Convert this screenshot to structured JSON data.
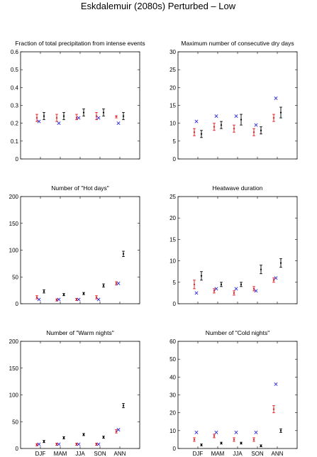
{
  "figure": {
    "title": "Eskdalemuir (2080s) Perturbed – Low",
    "categories": [
      "DJF",
      "MAM",
      "JJA",
      "SON",
      "ANN"
    ],
    "colors": {
      "red": "#e8141a",
      "blue": "#2a2ad8",
      "black": "#000000"
    }
  },
  "chart_data": [
    {
      "type": "scatter",
      "title": "Fraction of total precipitation from intense events",
      "ylim": [
        0,
        0.6
      ],
      "yticks": [
        "0",
        "0.1",
        "0.2",
        "0.3",
        "0.4",
        "0.5",
        "0.6"
      ],
      "ytick_values": [
        0,
        0.1,
        0.2,
        0.3,
        0.4,
        0.5,
        0.6
      ],
      "show_xticklabels": false,
      "series": [
        {
          "color": "red",
          "kind": "errorbar",
          "values": [
            0.23,
            0.23,
            0.23,
            0.24,
            0.24
          ],
          "low": [
            0.21,
            0.21,
            0.22,
            0.22,
            0.23
          ],
          "high": [
            0.25,
            0.25,
            0.25,
            0.26,
            0.24
          ]
        },
        {
          "color": "blue",
          "kind": "cross",
          "values": [
            0.21,
            0.2,
            0.23,
            0.23,
            0.2
          ]
        },
        {
          "color": "black",
          "kind": "errorbar",
          "values": [
            0.24,
            0.24,
            0.26,
            0.26,
            0.24
          ],
          "low": [
            0.22,
            0.22,
            0.24,
            0.24,
            0.22
          ],
          "high": [
            0.26,
            0.26,
            0.28,
            0.28,
            0.26
          ]
        }
      ]
    },
    {
      "type": "scatter",
      "title": "Maximum number of consecutive dry days",
      "ylim": [
        0,
        30
      ],
      "yticks": [
        "0",
        "5",
        "10",
        "15",
        "20",
        "25",
        "30"
      ],
      "ytick_values": [
        0,
        5,
        10,
        15,
        20,
        25,
        30
      ],
      "show_xticklabels": false,
      "series": [
        {
          "color": "red",
          "kind": "errorbar",
          "values": [
            7.5,
            9.0,
            8.5,
            7.5,
            11.5
          ],
          "low": [
            6.5,
            8.0,
            7.5,
            6.5,
            10.5
          ],
          "high": [
            8.5,
            10.0,
            9.5,
            8.5,
            12.5
          ]
        },
        {
          "color": "blue",
          "kind": "cross",
          "values": [
            10.5,
            12.0,
            12.0,
            9.5,
            17.0
          ]
        },
        {
          "color": "black",
          "kind": "errorbar",
          "values": [
            7.0,
            9.5,
            11.0,
            8.0,
            13.0
          ],
          "low": [
            6.0,
            8.5,
            9.5,
            7.0,
            11.5
          ],
          "high": [
            8.0,
            10.5,
            12.5,
            9.0,
            14.5
          ]
        }
      ]
    },
    {
      "type": "scatter",
      "title": "Number of \"Hot days\"",
      "ylim": [
        0,
        200
      ],
      "yticks": [
        "0",
        "50",
        "100",
        "150",
        "200"
      ],
      "ytick_values": [
        0,
        50,
        100,
        150,
        200
      ],
      "show_xticklabels": false,
      "series": [
        {
          "color": "red",
          "kind": "errorbar",
          "values": [
            12,
            7,
            8,
            12,
            38
          ],
          "low": [
            9,
            5,
            6,
            9,
            35
          ],
          "high": [
            15,
            9,
            10,
            15,
            41
          ]
        },
        {
          "color": "blue",
          "kind": "cross",
          "values": [
            8,
            8,
            8,
            8,
            38
          ]
        },
        {
          "color": "black",
          "kind": "errorbar",
          "values": [
            23,
            17,
            19,
            34,
            93
          ],
          "low": [
            20,
            15,
            17,
            31,
            88
          ],
          "high": [
            26,
            19,
            21,
            37,
            98
          ]
        }
      ]
    },
    {
      "type": "scatter",
      "title": "Heatwave duration",
      "ylim": [
        0,
        25
      ],
      "yticks": [
        "0",
        "5",
        "10",
        "15",
        "20",
        "25"
      ],
      "ytick_values": [
        0,
        5,
        10,
        15,
        20,
        25
      ],
      "show_xticklabels": false,
      "series": [
        {
          "color": "red",
          "kind": "errorbar",
          "values": [
            4.5,
            3.0,
            2.5,
            3.5,
            5.5
          ],
          "low": [
            3.5,
            2.5,
            2.0,
            3.0,
            5.0
          ],
          "high": [
            5.5,
            3.5,
            3.0,
            4.0,
            6.0
          ]
        },
        {
          "color": "blue",
          "kind": "cross",
          "values": [
            2.5,
            3.5,
            3.5,
            3.0,
            6.0
          ]
        },
        {
          "color": "black",
          "kind": "errorbar",
          "values": [
            6.5,
            4.5,
            4.5,
            8.0,
            9.5
          ],
          "low": [
            5.5,
            4.0,
            4.0,
            7.0,
            8.5
          ],
          "high": [
            7.5,
            5.0,
            5.0,
            9.0,
            10.5
          ]
        }
      ]
    },
    {
      "type": "scatter",
      "title": "Number of \"Warm nights\"",
      "ylim": [
        0,
        200
      ],
      "yticks": [
        "0",
        "50",
        "100",
        "150",
        "200"
      ],
      "ytick_values": [
        0,
        50,
        100,
        150,
        200
      ],
      "show_xticklabels": true,
      "series": [
        {
          "color": "red",
          "kind": "errorbar",
          "values": [
            7,
            8,
            8,
            8,
            32
          ],
          "low": [
            5,
            6,
            6,
            6,
            29
          ],
          "high": [
            9,
            10,
            10,
            10,
            35
          ]
        },
        {
          "color": "blue",
          "kind": "cross",
          "values": [
            8,
            8,
            8,
            8,
            35
          ]
        },
        {
          "color": "black",
          "kind": "errorbar",
          "values": [
            13,
            20,
            26,
            21,
            80
          ],
          "low": [
            11,
            18,
            24,
            19,
            76
          ],
          "high": [
            15,
            22,
            28,
            23,
            84
          ]
        }
      ]
    },
    {
      "type": "scatter",
      "title": "Number of \"Cold nights\"",
      "ylim": [
        0,
        60
      ],
      "yticks": [
        "0",
        "10",
        "20",
        "30",
        "40",
        "50",
        "60"
      ],
      "ytick_values": [
        0,
        10,
        20,
        30,
        40,
        50,
        60
      ],
      "show_xticklabels": true,
      "series": [
        {
          "color": "red",
          "kind": "errorbar",
          "values": [
            5,
            7,
            5,
            5,
            22
          ],
          "low": [
            4,
            6,
            4,
            4,
            20
          ],
          "high": [
            6,
            8,
            6,
            6,
            24
          ]
        },
        {
          "color": "blue",
          "kind": "cross",
          "values": [
            9,
            9,
            9,
            9,
            36
          ]
        },
        {
          "color": "black",
          "kind": "errorbar",
          "values": [
            2,
            3,
            3,
            1.5,
            10
          ],
          "low": [
            1.5,
            2.5,
            2.5,
            1.0,
            9
          ],
          "high": [
            2.5,
            3.5,
            3.5,
            2.0,
            11
          ]
        }
      ]
    }
  ]
}
